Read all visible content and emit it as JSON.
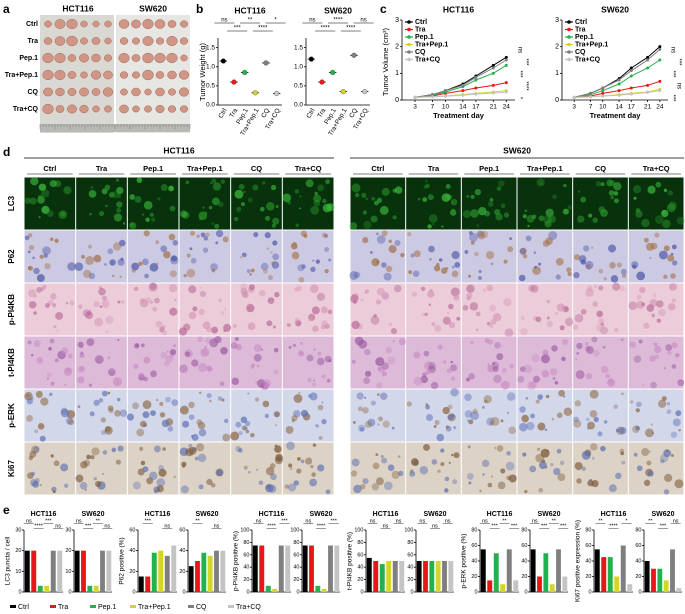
{
  "panel_letters": [
    "a",
    "b",
    "c",
    "d",
    "e"
  ],
  "cell_lines": [
    "HCT116",
    "SW620"
  ],
  "groups": [
    "Ctrl",
    "Tra",
    "Pep.1",
    "Tra+Pep.1",
    "CQ",
    "Tra+CQ"
  ],
  "group_colors": [
    "#000000",
    "#e8161b",
    "#22b14c",
    "#d4d42a",
    "#7f7f7f",
    "#c4c4c4"
  ],
  "b": {
    "y_label": "Tumor Weight (g)",
    "ylim": [
      0,
      1.7
    ],
    "yticks": [
      {
        "value": 0,
        "label": "0.0"
      },
      {
        "value": 0.5,
        "label": "0.5"
      },
      {
        "value": 1,
        "label": "1.0"
      },
      {
        "value": 1.5,
        "label": "1.5"
      }
    ],
    "charts": [
      {
        "values": [
          1.15,
          0.6,
          0.85,
          0.32,
          1.1,
          0.3
        ],
        "significance": [
          "ns",
          "***",
          "**",
          "****",
          "*"
        ]
      },
      {
        "values": [
          1.2,
          0.6,
          0.85,
          0.35,
          1.3,
          0.35
        ],
        "significance": [
          "ns",
          "****",
          "****",
          "****",
          "ns"
        ]
      }
    ]
  },
  "c": {
    "y_label": "Tumor Volume (cm³)",
    "x_label": "Treatment day",
    "x": [
      3,
      7,
      10,
      14,
      17,
      21,
      24
    ],
    "xlim": [
      0,
      26
    ],
    "ylim": [
      0,
      3
    ],
    "yticks": [
      0,
      1,
      2,
      3
    ],
    "charts": [
      {
        "series": [
          {
            "values": [
              0.1,
              0.2,
              0.35,
              0.6,
              0.9,
              1.3,
              1.6
            ]
          },
          {
            "values": [
              0.1,
              0.15,
              0.25,
              0.35,
              0.45,
              0.55,
              0.65
            ]
          },
          {
            "values": [
              0.1,
              0.18,
              0.3,
              0.5,
              0.75,
              1.0,
              1.3
            ]
          },
          {
            "values": [
              0.1,
              0.12,
              0.15,
              0.2,
              0.25,
              0.3,
              0.35
            ]
          },
          {
            "values": [
              0.1,
              0.2,
              0.35,
              0.55,
              0.85,
              1.2,
              1.5
            ]
          },
          {
            "values": [
              0.1,
              0.12,
              0.14,
              0.18,
              0.22,
              0.26,
              0.3
            ]
          }
        ],
        "significance": [
          "ns",
          "***",
          "***",
          "****",
          "*"
        ]
      },
      {
        "series": [
          {
            "values": [
              0.1,
              0.25,
              0.45,
              0.8,
              1.2,
              1.6,
              2.0
            ]
          },
          {
            "values": [
              0.1,
              0.15,
              0.25,
              0.35,
              0.45,
              0.55,
              0.7
            ]
          },
          {
            "values": [
              0.1,
              0.2,
              0.35,
              0.6,
              0.9,
              1.2,
              1.5
            ]
          },
          {
            "values": [
              0.1,
              0.12,
              0.15,
              0.2,
              0.25,
              0.3,
              0.4
            ]
          },
          {
            "values": [
              0.1,
              0.25,
              0.45,
              0.75,
              1.1,
              1.5,
              1.9
            ]
          },
          {
            "values": [
              0.1,
              0.12,
              0.15,
              0.18,
              0.22,
              0.28,
              0.35
            ]
          }
        ],
        "significance": [
          "ns",
          "***",
          "***",
          "ns",
          "***"
        ]
      }
    ]
  },
  "d": {
    "markers": [
      "LC3",
      "P62",
      "p-PI4KB",
      "t-PI4KB",
      "p-ERK",
      "Ki67"
    ]
  },
  "e": {
    "charts": [
      {
        "y_label": "LC3 puncta / cell",
        "ylim": [
          0,
          30
        ],
        "yticks": [
          0,
          10,
          20,
          30
        ],
        "values": [
          [
            20,
            20,
            3,
            3,
            20,
            20
          ],
          [
            20,
            20,
            3,
            3,
            20,
            20
          ]
        ],
        "significance": [
          [
            "ns",
            "****",
            "***",
            "ns"
          ],
          [
            "ns",
            "***",
            "**",
            "ns"
          ]
        ]
      },
      {
        "y_label": "P62 positive (%)",
        "ylim": [
          0,
          60
        ],
        "yticks": [
          0,
          20,
          40,
          60
        ],
        "values": [
          [
            15,
            15,
            38,
            40,
            35,
            45
          ],
          [
            25,
            30,
            38,
            35,
            40,
            40
          ]
        ],
        "significance": [
          [
            "***",
            "ns"
          ],
          [
            "**",
            "ns"
          ]
        ]
      },
      {
        "y_label": "p-PI4KB positive (%)",
        "ylim": [
          0,
          100
        ],
        "yticks": [
          0,
          20,
          40,
          60,
          80,
          100
        ],
        "values": [
          [
            75,
            75,
            10,
            5,
            75,
            75
          ],
          [
            75,
            75,
            10,
            5,
            75,
            75
          ]
        ],
        "significance": [
          [
            "ns",
            "****",
            "***"
          ],
          [
            "ns",
            "****",
            "***"
          ]
        ]
      },
      {
        "y_label": "t-PI4KB positive (%)",
        "ylim": [
          0,
          100
        ],
        "yticks": [
          0,
          20,
          40,
          60,
          80,
          100
        ],
        "values": [
          [
            55,
            50,
            45,
            50,
            50,
            50
          ],
          [
            50,
            50,
            50,
            50,
            50,
            50
          ]
        ],
        "significance": [
          [
            "ns",
            "ns",
            "ns"
          ],
          [
            "ns",
            "ns",
            "ns"
          ]
        ]
      },
      {
        "y_label": "p-ERK positive (%)",
        "ylim": [
          0,
          80
        ],
        "yticks": [
          0,
          20,
          40,
          60,
          80
        ],
        "values": [
          [
            55,
            15,
            50,
            10,
            55,
            15
          ],
          [
            55,
            20,
            50,
            10,
            55,
            20
          ]
        ],
        "significance": [
          [
            "ns",
            "***",
            "**",
            "***"
          ],
          [
            "ns",
            "***",
            "**",
            "***"
          ]
        ]
      },
      {
        "y_label": "Ki67 positive expression (%)",
        "ylim": [
          0,
          80
        ],
        "yticks": [
          0,
          20,
          40,
          60,
          80
        ],
        "values": [
          [
            55,
            45,
            45,
            20,
            60,
            10
          ],
          [
            40,
            30,
            30,
            15,
            55,
            5
          ]
        ],
        "significance": [
          [
            "**",
            "****",
            "*"
          ],
          [
            "**",
            "***",
            "ns"
          ]
        ]
      }
    ]
  }
}
